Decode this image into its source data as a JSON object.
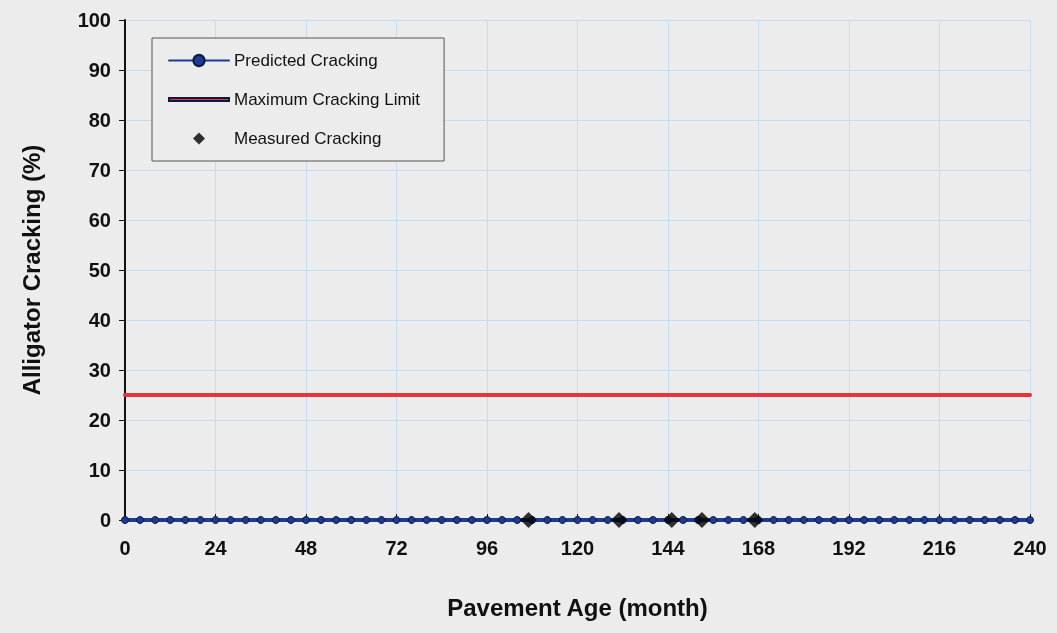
{
  "chart_data": {
    "type": "line",
    "xlabel": "Pavement Age (month)",
    "ylabel": "Alligator Cracking (%)",
    "xlim": [
      0,
      240
    ],
    "xticks": [
      0,
      24,
      48,
      72,
      96,
      120,
      144,
      168,
      192,
      216,
      240
    ],
    "ylim": [
      0,
      100
    ],
    "yticks": [
      0,
      10,
      20,
      30,
      40,
      50,
      60,
      70,
      80,
      90,
      100
    ],
    "grid": true,
    "legend": "top left",
    "series": [
      {
        "name": "Predicted Cracking",
        "color": "#1f3a93",
        "marker": "circle",
        "x": [
          0,
          4,
          8,
          12,
          16,
          20,
          24,
          28,
          32,
          36,
          40,
          44,
          48,
          52,
          56,
          60,
          64,
          68,
          72,
          76,
          80,
          84,
          88,
          92,
          96,
          100,
          104,
          108,
          112,
          116,
          120,
          124,
          128,
          132,
          136,
          140,
          144,
          148,
          152,
          156,
          160,
          164,
          168,
          172,
          176,
          180,
          184,
          188,
          192,
          196,
          200,
          204,
          208,
          212,
          216,
          220,
          224,
          228,
          232,
          236,
          240
        ],
        "values": [
          0,
          0,
          0,
          0,
          0,
          0,
          0,
          0,
          0,
          0,
          0,
          0,
          0,
          0,
          0,
          0,
          0,
          0,
          0,
          0,
          0,
          0,
          0,
          0,
          0,
          0,
          0,
          0,
          0,
          0,
          0,
          0,
          0,
          0,
          0,
          0,
          0,
          0,
          0,
          0,
          0,
          0,
          0,
          0,
          0,
          0,
          0,
          0,
          0,
          0,
          0,
          0,
          0,
          0,
          0,
          0,
          0,
          0,
          0,
          0,
          0
        ]
      },
      {
        "name": "Maximum Cracking Limit",
        "color": "#e8323c",
        "marker": "none",
        "x": [
          0,
          240
        ],
        "values": [
          25,
          25
        ]
      },
      {
        "name": "Measured Cracking",
        "type": "scatter",
        "color": "#000000",
        "marker": "diamond",
        "x": [
          107,
          131,
          145,
          153,
          167
        ],
        "values": [
          0,
          0,
          0,
          0,
          0
        ]
      }
    ]
  }
}
